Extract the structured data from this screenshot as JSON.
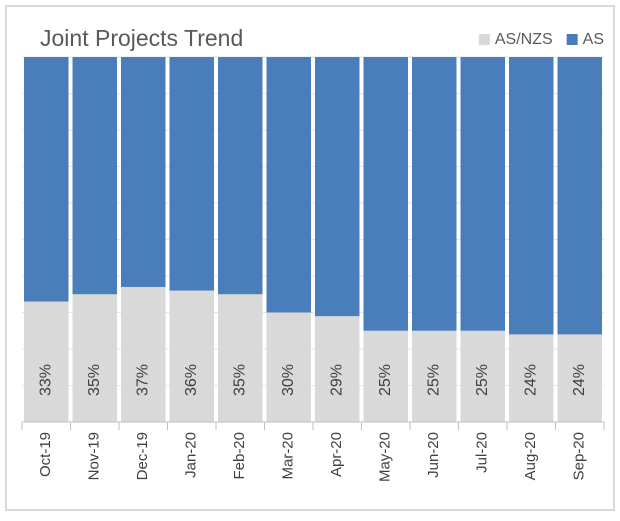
{
  "chart_data": {
    "type": "stacked_bar",
    "title": "Joint Projects Trend",
    "categories": [
      "Oct-19",
      "Nov-19",
      "Dec-19",
      "Jan-20",
      "Feb-20",
      "Mar-20",
      "Apr-20",
      "May-20",
      "Jun-20",
      "Jul-20",
      "Aug-20",
      "Sep-20"
    ],
    "series": [
      {
        "name": "AS/NZS",
        "color": "#d9d9d9",
        "values": [
          33,
          35,
          37,
          36,
          35,
          30,
          29,
          25,
          25,
          25,
          24,
          24
        ],
        "value_labels": [
          "33%",
          "35%",
          "37%",
          "36%",
          "35%",
          "30%",
          "29%",
          "25%",
          "25%",
          "25%",
          "24%",
          "24%"
        ]
      },
      {
        "name": "AS",
        "color": "#4a7ebb",
        "values": [
          67,
          65,
          63,
          64,
          65,
          70,
          71,
          75,
          75,
          75,
          76,
          76
        ]
      }
    ],
    "ylim": [
      0,
      100
    ],
    "yticks": [
      0,
      10,
      20,
      30,
      40,
      50,
      60,
      70,
      80,
      90,
      100
    ],
    "grid": true,
    "legend": "top-right"
  }
}
